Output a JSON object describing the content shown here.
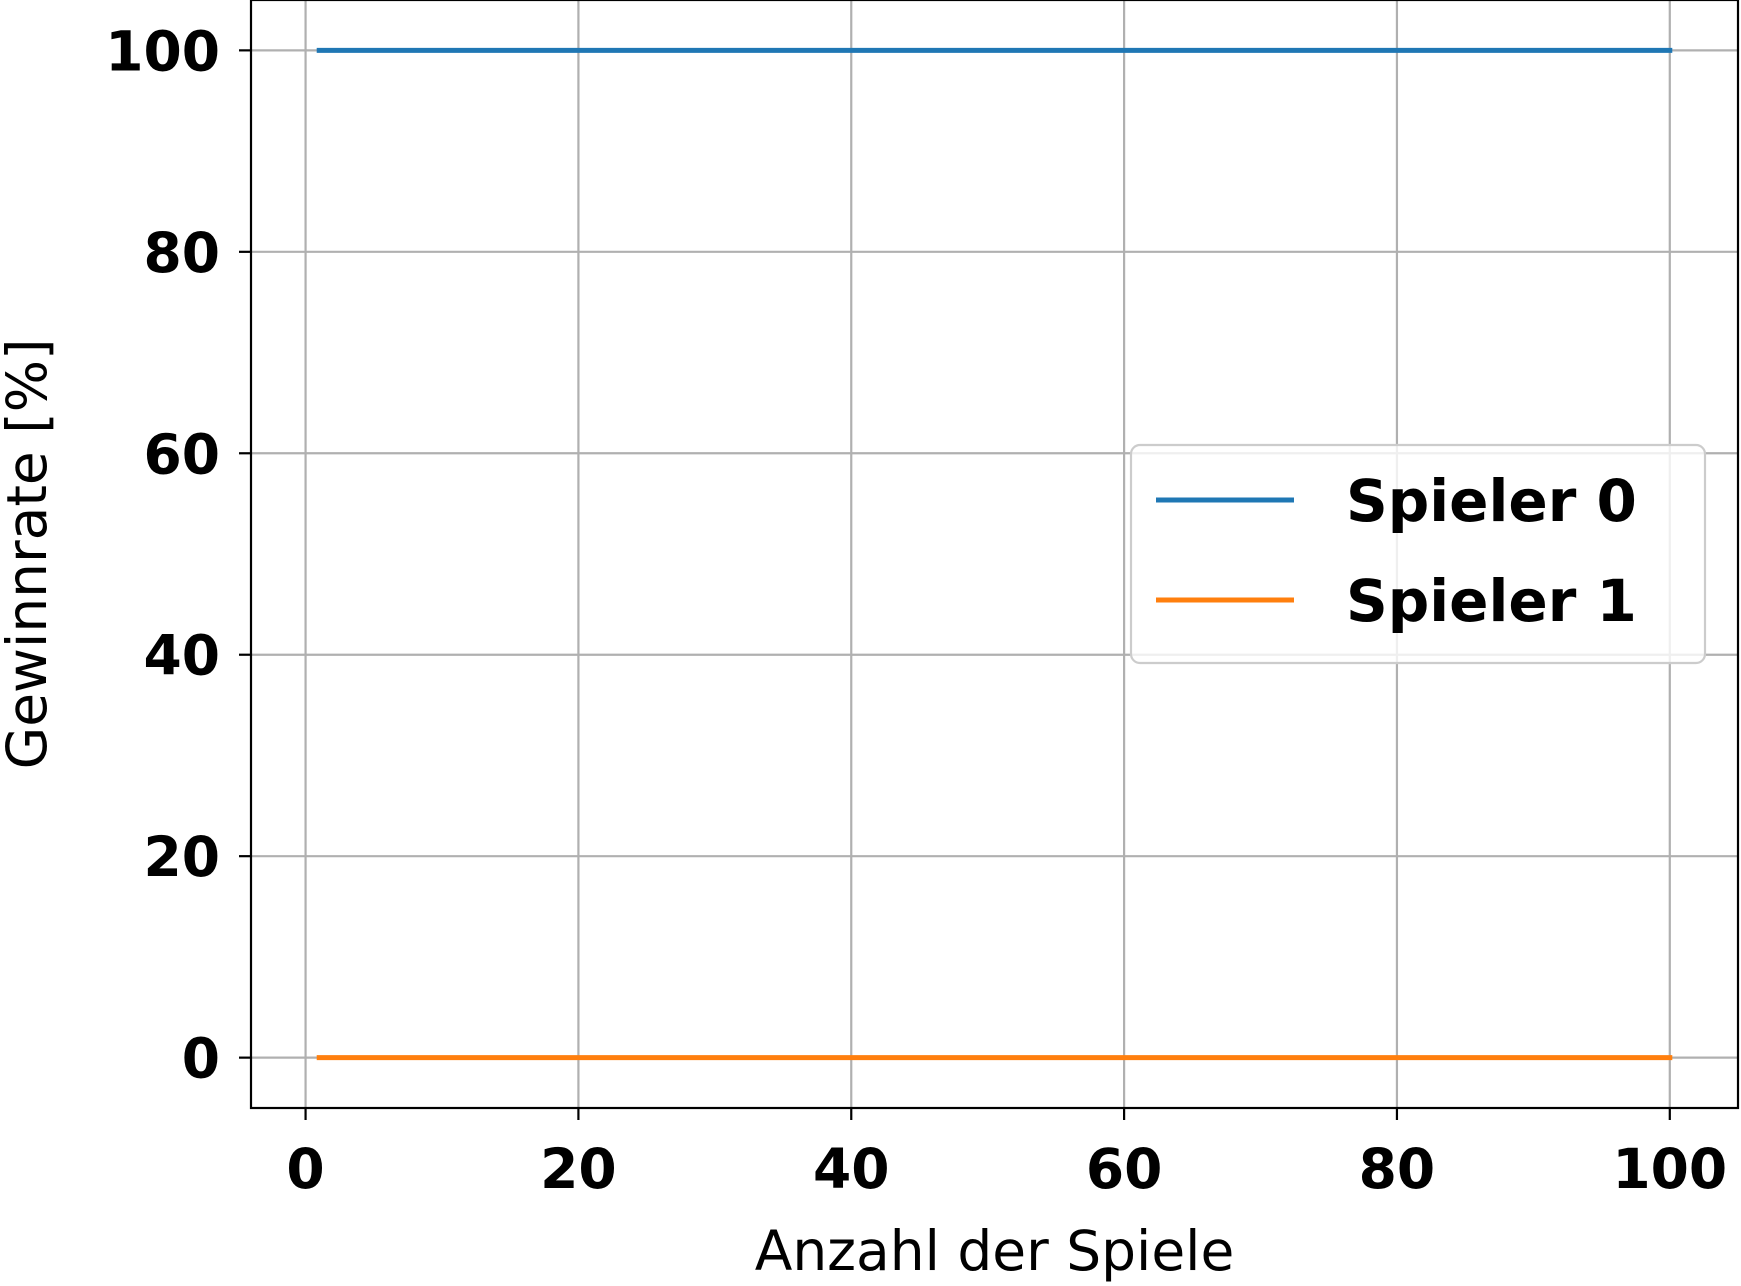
{
  "chart_data": {
    "type": "line",
    "title": "",
    "xlabel": "Anzahl der Spiele",
    "ylabel": "Gewinnrate [%]",
    "xlim": [
      -4,
      105
    ],
    "ylim": [
      -5,
      105
    ],
    "xticks": [
      0,
      20,
      40,
      60,
      80,
      100
    ],
    "yticks": [
      0,
      20,
      40,
      60,
      80,
      100
    ],
    "xtick_labels": [
      "0",
      "20",
      "40",
      "60",
      "80",
      "100"
    ],
    "ytick_labels": [
      "0",
      "20",
      "40",
      "60",
      "80",
      "100"
    ],
    "grid": true,
    "legend_position": "center-right",
    "series": [
      {
        "name": "Spieler 0",
        "color": "#1f77b4",
        "x": [
          1,
          100
        ],
        "y": [
          100,
          100
        ]
      },
      {
        "name": "Spieler 1",
        "color": "#ff7f0e",
        "x": [
          1,
          100
        ],
        "y": [
          0,
          0
        ]
      }
    ]
  }
}
